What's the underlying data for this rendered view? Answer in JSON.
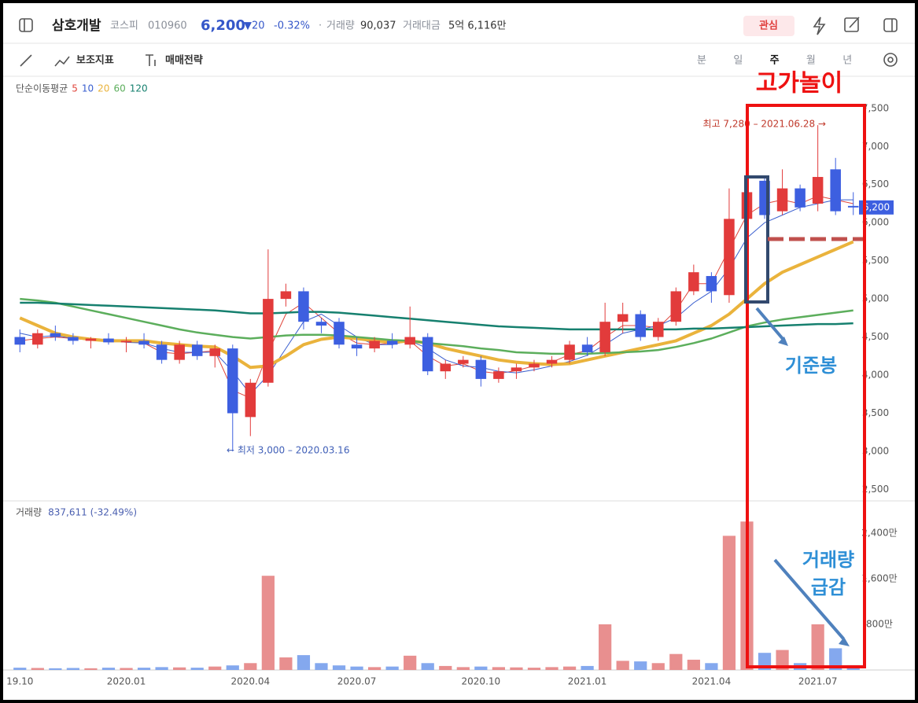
{
  "header": {
    "name": "삼호개발",
    "market": "코스피",
    "code": "010960",
    "price": "6,200",
    "change": "▼20",
    "change_pct": "-0.32%",
    "separator": "·",
    "volume_label": "거래량",
    "volume": "90,037",
    "amount_label": "거래대금",
    "amount": "5억 6,116만",
    "watch": "관심"
  },
  "toolbar": {
    "indicator": "보조지표",
    "strategy": "매매전략",
    "periods": [
      "분",
      "일",
      "주",
      "월",
      "년"
    ]
  },
  "chart_data": [
    {
      "type": "candlestick",
      "legend_title": "단순이동평균",
      "categories": [
        "19.10",
        null,
        null,
        null,
        null,
        null,
        "2020.01",
        null,
        null,
        null,
        null,
        null,
        null,
        "2020.04",
        null,
        null,
        null,
        null,
        null,
        "2020.07",
        null,
        null,
        null,
        null,
        null,
        null,
        "2020.10",
        null,
        null,
        null,
        null,
        null,
        "2021.01",
        null,
        null,
        null,
        null,
        null,
        null,
        "2021.04",
        null,
        null,
        null,
        null,
        null,
        "2021.07",
        null,
        null
      ],
      "open": [
        4500,
        4400,
        4550,
        4500,
        4450,
        4480,
        4430,
        4450,
        4400,
        4200,
        4400,
        4250,
        4350,
        3450,
        3900,
        5000,
        5100,
        4700,
        4700,
        4400,
        4350,
        4450,
        4400,
        4500,
        4050,
        4150,
        4200,
        3950,
        4050,
        4100,
        4150,
        4200,
        4400,
        4300,
        4700,
        4800,
        4500,
        4700,
        5100,
        5300,
        5050,
        6050,
        6550,
        6150,
        6450,
        6250,
        6700,
        6220
      ],
      "high": [
        4600,
        4600,
        4650,
        4550,
        4500,
        4550,
        4500,
        4550,
        4450,
        4450,
        4450,
        4400,
        4400,
        3950,
        5650,
        5200,
        5150,
        4750,
        4750,
        4500,
        4500,
        4550,
        4900,
        4550,
        4200,
        4250,
        4250,
        4100,
        4150,
        4200,
        4250,
        4450,
        4500,
        4950,
        4950,
        4850,
        4750,
        5150,
        5450,
        5350,
        6450,
        7100,
        6600,
        6700,
        6500,
        7280,
        6850,
        6400
      ],
      "low": [
        4300,
        4350,
        4450,
        4400,
        4350,
        4400,
        4300,
        4350,
        4150,
        4150,
        4200,
        4100,
        3000,
        3200,
        3850,
        4900,
        4600,
        4550,
        4350,
        4250,
        4300,
        4350,
        4350,
        4000,
        3950,
        4100,
        3850,
        3900,
        3950,
        4050,
        4100,
        4150,
        4250,
        4250,
        4550,
        4450,
        4450,
        4650,
        5050,
        4950,
        4950,
        5950,
        6050,
        6100,
        6150,
        6150,
        6100,
        6100
      ],
      "close": [
        4400,
        4550,
        4500,
        4450,
        4480,
        4430,
        4450,
        4400,
        4200,
        4400,
        4250,
        4350,
        3500,
        3900,
        5000,
        5100,
        4700,
        4650,
        4400,
        4350,
        4450,
        4400,
        4500,
        4050,
        4150,
        4200,
        3950,
        4050,
        4100,
        4150,
        4200,
        4400,
        4300,
        4700,
        4800,
        4500,
        4700,
        5100,
        5350,
        5100,
        6050,
        6400,
        6100,
        6450,
        6200,
        6600,
        6150,
        6200
      ],
      "up_color": "#e23b3b",
      "down_color": "#3d5fe0",
      "series": [
        {
          "name": "5",
          "color": "#e0463c",
          "values": [
            4450,
            4480,
            4500,
            4480,
            4460,
            4450,
            4440,
            4420,
            4300,
            4280,
            4300,
            4320,
            3800,
            3700,
            4300,
            4800,
            4950,
            4750,
            4550,
            4420,
            4400,
            4420,
            4450,
            4250,
            4120,
            4150,
            4050,
            4020,
            4060,
            4120,
            4170,
            4270,
            4320,
            4500,
            4650,
            4650,
            4620,
            4850,
            5200,
            5200,
            5650,
            6100,
            6250,
            6300,
            6250,
            6350,
            6300,
            6250
          ]
        },
        {
          "name": "10",
          "color": "#3a5fcf",
          "values": [
            4550,
            4500,
            4520,
            4480,
            4470,
            4460,
            4430,
            4420,
            4350,
            4300,
            4300,
            4300,
            4050,
            3750,
            4000,
            4350,
            4700,
            4800,
            4650,
            4500,
            4400,
            4400,
            4450,
            4350,
            4200,
            4120,
            4100,
            4050,
            4030,
            4070,
            4120,
            4180,
            4260,
            4400,
            4550,
            4600,
            4650,
            4750,
            4950,
            5100,
            5400,
            5800,
            6000,
            6100,
            6200,
            6250,
            6300,
            6300
          ]
        },
        {
          "name": "20",
          "color": "#eab33c",
          "values": [
            4750,
            4650,
            4550,
            4500,
            4470,
            4450,
            4450,
            4450,
            4420,
            4400,
            4380,
            4370,
            4250,
            4100,
            4120,
            4250,
            4400,
            4470,
            4500,
            4480,
            4450,
            4430,
            4450,
            4420,
            4350,
            4300,
            4250,
            4200,
            4170,
            4150,
            4140,
            4150,
            4200,
            4250,
            4300,
            4350,
            4400,
            4450,
            4550,
            4650,
            4800,
            5000,
            5200,
            5350,
            5450,
            5550,
            5650,
            5750
          ]
        },
        {
          "name": "60",
          "color": "#5cae5c",
          "values": [
            5000,
            4980,
            4950,
            4900,
            4850,
            4800,
            4750,
            4700,
            4650,
            4600,
            4560,
            4530,
            4500,
            4480,
            4500,
            4520,
            4530,
            4530,
            4520,
            4500,
            4480,
            4460,
            4450,
            4420,
            4400,
            4380,
            4350,
            4330,
            4300,
            4290,
            4280,
            4280,
            4280,
            4290,
            4300,
            4310,
            4330,
            4370,
            4420,
            4480,
            4560,
            4640,
            4690,
            4730,
            4760,
            4790,
            4820,
            4850
          ]
        },
        {
          "name": "120",
          "color": "#16806f",
          "values": [
            4950,
            4950,
            4940,
            4930,
            4920,
            4910,
            4900,
            4890,
            4880,
            4870,
            4860,
            4850,
            4830,
            4810,
            4810,
            4820,
            4830,
            4830,
            4820,
            4800,
            4780,
            4760,
            4740,
            4720,
            4700,
            4680,
            4660,
            4640,
            4630,
            4620,
            4610,
            4600,
            4600,
            4600,
            4600,
            4600,
            4600,
            4600,
            4610,
            4610,
            4620,
            4630,
            4640,
            4650,
            4660,
            4670,
            4670,
            4680
          ]
        }
      ],
      "ylim": [
        2360,
        7890
      ],
      "yticks": [
        {
          "value": 2500,
          "label": "2,500"
        },
        {
          "value": 3000,
          "label": "3,000"
        },
        {
          "value": 3500,
          "label": "3,500"
        },
        {
          "value": 4000,
          "label": "4,000"
        },
        {
          "value": 4500,
          "label": "4,500"
        },
        {
          "value": 5000,
          "label": "5,000"
        },
        {
          "value": 5500,
          "label": "5,500"
        },
        {
          "value": 6000,
          "label": "6,000"
        },
        {
          "value": 6500,
          "label": "6,500"
        },
        {
          "value": 7000,
          "label": "7,000"
        },
        {
          "value": 7500,
          "label": "7,500"
        }
      ],
      "grid": false,
      "last_price": {
        "value": 6200,
        "label": "6,200"
      },
      "annotations": {
        "high": "최고 7,280 – 2021.06.28 →",
        "low": "← 최저 3,000 – 2020.03.16",
        "overlay_title": "고가놀이",
        "base_candle": "기준봉",
        "volume_drop": [
          "거래량",
          "급감"
        ]
      }
    },
    {
      "type": "bar",
      "label": "거래량",
      "summary": "837,611 (-32.49%)",
      "values": [
        40,
        35,
        30,
        35,
        30,
        40,
        35,
        40,
        50,
        45,
        40,
        60,
        80,
        120,
        1650,
        220,
        260,
        120,
        80,
        60,
        50,
        60,
        250,
        120,
        70,
        50,
        60,
        50,
        45,
        40,
        50,
        60,
        70,
        800,
        160,
        150,
        120,
        280,
        180,
        120,
        2350,
        2600,
        300,
        350,
        120,
        800,
        380,
        84
      ],
      "up_color": "#e88f8f",
      "down_color": "#84a8ee",
      "ylim": [
        0,
        2920
      ],
      "yticks": [
        {
          "value": 800,
          "label": "800만"
        },
        {
          "value": 1600,
          "label": "1,600만"
        },
        {
          "value": 2400,
          "label": "2,400만"
        }
      ]
    }
  ]
}
